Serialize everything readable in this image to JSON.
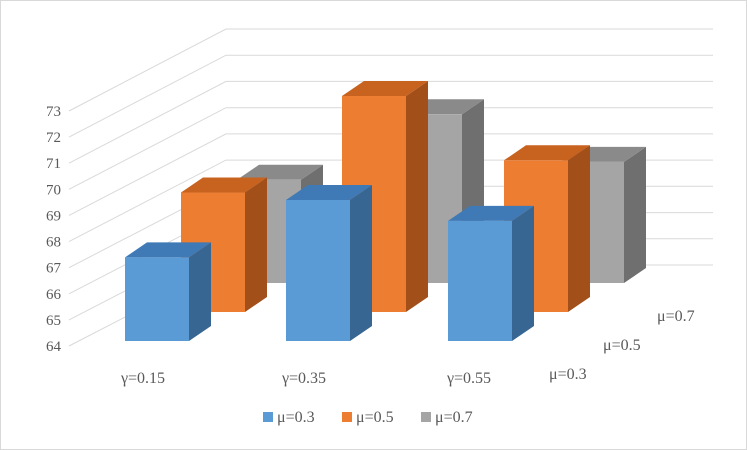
{
  "chart_data": {
    "type": "bar",
    "subtype": "3d-clustered-column",
    "categories": [
      "γ=0.15",
      "γ=0.35",
      "γ=0.55"
    ],
    "series": [
      {
        "name": "μ=0.3",
        "values": [
          67.2,
          69.4,
          68.6
        ],
        "color": "#5b9bd5",
        "top": "#3f7ab6",
        "side": "#376692"
      },
      {
        "name": "μ=0.5",
        "values": [
          69.2,
          73.4,
          70.6
        ],
        "color": "#ed7d31",
        "top": "#c8621f",
        "side": "#a34f19"
      },
      {
        "name": "μ=0.7",
        "values": [
          69.2,
          72.5,
          70.1
        ],
        "color": "#a5a5a5",
        "top": "#8a8a8a",
        "side": "#6f6f6f"
      }
    ],
    "yticks": [
      64,
      65,
      66,
      67,
      68,
      69,
      70,
      71,
      72,
      73
    ],
    "ylim": [
      64,
      73
    ],
    "grid": true,
    "legend": "bottom"
  }
}
